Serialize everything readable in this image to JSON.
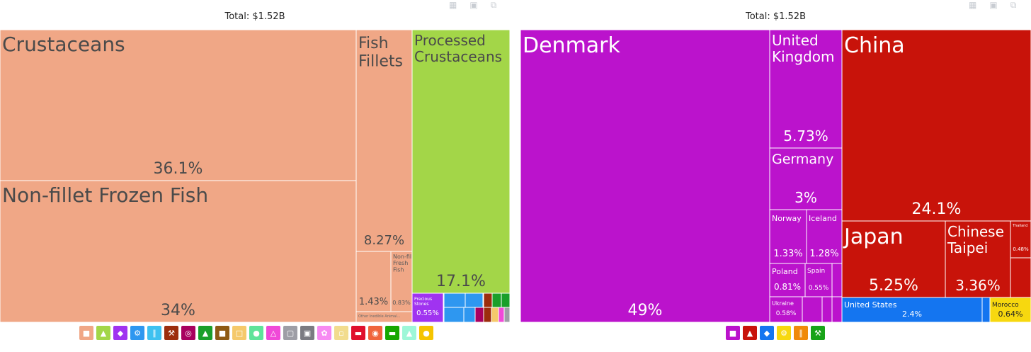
{
  "toolbar_icons": [
    "table-icon",
    "image-icon",
    "share-icon"
  ],
  "chart_data": [
    {
      "type": "treemap",
      "title": "Total: $1.52B",
      "nodes": [
        {
          "label": "Crustaceans",
          "value": 36.1,
          "value_label": "36.1%",
          "color": "#f0a786"
        },
        {
          "label": "Non-fillet Frozen Fish",
          "value": 34,
          "value_label": "34%",
          "color": "#f0a786"
        },
        {
          "label": "Fish Fillets",
          "value": 8.27,
          "value_label": "8.27%",
          "color": "#f0a786"
        },
        {
          "label": "",
          "value": 1.43,
          "value_label": "1.43%",
          "color": "#f0a786"
        },
        {
          "label": "Non-fillet Fresh Fish",
          "value": 0.83,
          "value_label": "0.83%",
          "color": "#f0a786"
        },
        {
          "label": "Other Inedible Animal...",
          "value": 0.3,
          "value_label": "",
          "color": "#f0a786"
        },
        {
          "label": "Processed Crustaceans",
          "value": 17.1,
          "value_label": "17.1%",
          "color": "#a3d648"
        },
        {
          "label": "Precious Stones",
          "value": 0.55,
          "value_label": "0.55%",
          "color": "#a033f0"
        }
      ],
      "legend_icons": [
        {
          "name": "animal-products-icon",
          "color": "#f0a786"
        },
        {
          "name": "vegetable-products-icon",
          "color": "#a3d648"
        },
        {
          "name": "precious-metals-icon",
          "color": "#a033f0"
        },
        {
          "name": "machines-icon",
          "color": "#2e97f0"
        },
        {
          "name": "transportation-icon",
          "color": "#3ec1f0"
        },
        {
          "name": "metals-icon",
          "color": "#9c2d0d"
        },
        {
          "name": "instruments-icon",
          "color": "#a8005f"
        },
        {
          "name": "textiles-icon",
          "color": "#1a9f2a"
        },
        {
          "name": "footwear-icon",
          "color": "#8e5a14"
        },
        {
          "name": "paper-goods-icon",
          "color": "#f5c96b"
        },
        {
          "name": "animal-hides-icon",
          "color": "#5fe39a"
        },
        {
          "name": "chemical-products-icon",
          "color": "#f049d8"
        },
        {
          "name": "plastics-icon",
          "color": "#9e9ea6"
        },
        {
          "name": "miscellaneous-icon",
          "color": "#7b7b82"
        },
        {
          "name": "arts-icon",
          "color": "#f78af2"
        },
        {
          "name": "wood-products-icon",
          "color": "#f2dc8e"
        },
        {
          "name": "weapons-icon",
          "color": "#e0102d"
        },
        {
          "name": "stone-icon",
          "color": "#f0653c"
        },
        {
          "name": "foodstuffs-icon",
          "color": "#16a700"
        },
        {
          "name": "mineral-products-icon",
          "color": "#9df7d8"
        },
        {
          "name": "oils-icon",
          "color": "#f5c400"
        }
      ]
    },
    {
      "type": "treemap",
      "title": "Total: $1.52B",
      "nodes": [
        {
          "label": "Denmark",
          "value": 49,
          "value_label": "49%",
          "color": "#bb13cc"
        },
        {
          "label": "United Kingdom",
          "value": 5.73,
          "value_label": "5.73%",
          "color": "#bb13cc"
        },
        {
          "label": "Germany",
          "value": 3,
          "value_label": "3%",
          "color": "#bb13cc"
        },
        {
          "label": "Norway",
          "value": 1.33,
          "value_label": "1.33%",
          "color": "#bb13cc"
        },
        {
          "label": "Iceland",
          "value": 1.28,
          "value_label": "1.28%",
          "color": "#bb13cc"
        },
        {
          "label": "Poland",
          "value": 0.81,
          "value_label": "0.81%",
          "color": "#bb13cc"
        },
        {
          "label": "Spain",
          "value": 0.55,
          "value_label": "0.55%",
          "color": "#bb13cc"
        },
        {
          "label": "Ukraine",
          "value": 0.58,
          "value_label": "0.58%",
          "color": "#bb13cc"
        },
        {
          "label": "China",
          "value": 24.1,
          "value_label": "24.1%",
          "color": "#c8130a"
        },
        {
          "label": "Japan",
          "value": 5.25,
          "value_label": "5.25%",
          "color": "#c8130a"
        },
        {
          "label": "Chinese Taipei",
          "value": 3.36,
          "value_label": "3.36%",
          "color": "#c8130a"
        },
        {
          "label": "Thailand",
          "value": 0.48,
          "value_label": "0.48%",
          "color": "#c8130a"
        },
        {
          "label": "United States",
          "value": 2.4,
          "value_label": "2.4%",
          "color": "#1475f0"
        },
        {
          "label": "Morocco",
          "value": 0.64,
          "value_label": "0.64%",
          "color": "#f7d80f"
        }
      ],
      "legend_icons": [
        {
          "name": "europe-icon",
          "color": "#bb13cc"
        },
        {
          "name": "asia-icon",
          "color": "#c8130a"
        },
        {
          "name": "north-america-icon",
          "color": "#1475f0"
        },
        {
          "name": "africa-icon",
          "color": "#f7d80f"
        },
        {
          "name": "oceania-icon",
          "color": "#f08a0a"
        },
        {
          "name": "south-america-icon",
          "color": "#18a318"
        }
      ]
    }
  ]
}
